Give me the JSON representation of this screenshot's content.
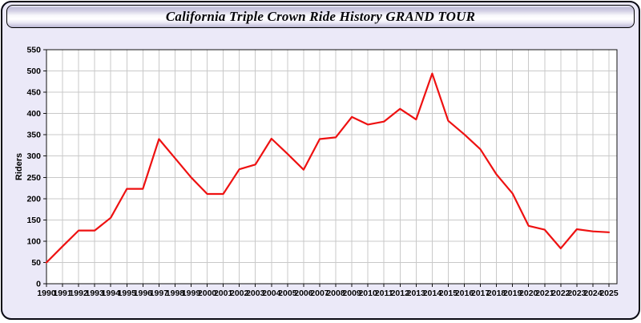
{
  "window": {
    "title": "California Triple Crown Ride History GRAND TOUR"
  },
  "colors": {
    "panel_bg": "#ebe9f8",
    "plot_bg": "#ffffff",
    "grid": "#c9c9c9",
    "axis": "#111111",
    "tick_label": "#000000",
    "line": "#ee1111"
  },
  "chart_data": {
    "type": "line",
    "title": "California Triple Crown Ride History GRAND TOUR",
    "ylabel": "Riders",
    "xlabel": "",
    "grid": true,
    "legend_position": "none",
    "ylim": [
      0,
      550
    ],
    "y_ticks": [
      0,
      50,
      100,
      150,
      200,
      250,
      300,
      350,
      400,
      450,
      500,
      550
    ],
    "x": [
      1990,
      1991,
      1992,
      1993,
      1994,
      1995,
      1996,
      1997,
      1998,
      1999,
      2000,
      2001,
      2002,
      2003,
      2004,
      2005,
      2006,
      2007,
      2008,
      2009,
      2010,
      2011,
      2012,
      2013,
      2014,
      2015,
      2016,
      2017,
      2018,
      2019,
      2020,
      2021,
      2022,
      2023,
      2024,
      2025
    ],
    "series": [
      {
        "name": "Riders",
        "color": "#ee1111",
        "values": [
          50,
          88,
          125,
          125,
          155,
          223,
          223,
          340,
          295,
          250,
          211,
          211,
          269,
          280,
          341,
          305,
          268,
          340,
          344,
          392,
          374,
          381,
          411,
          386,
          494,
          383,
          351,
          316,
          257,
          212,
          136,
          127,
          83,
          128,
          123,
          121
        ]
      }
    ]
  }
}
